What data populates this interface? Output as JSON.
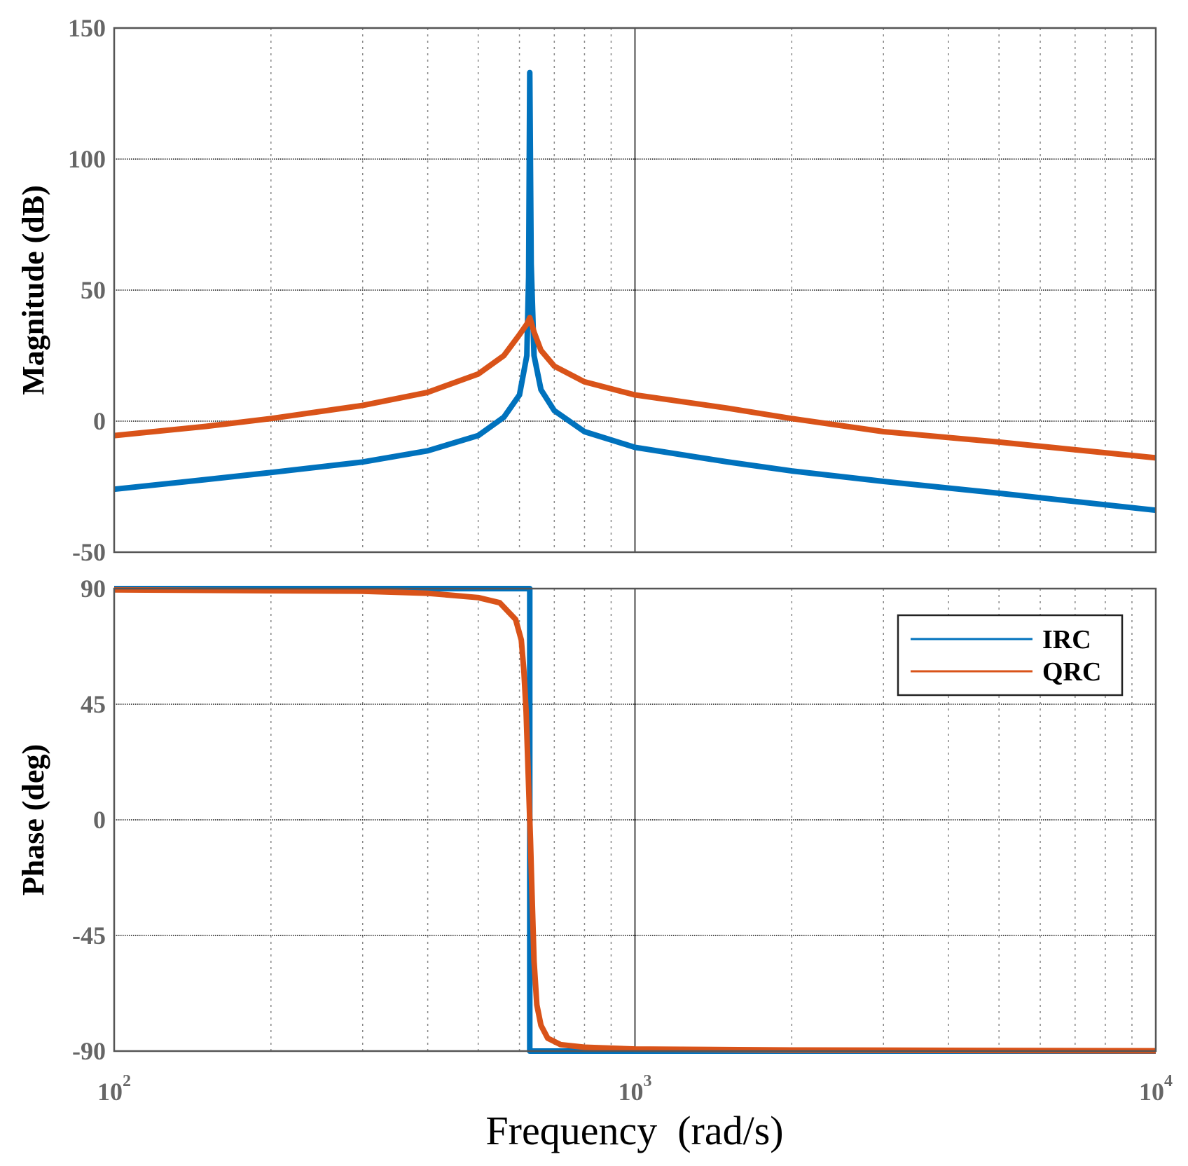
{
  "chart_data": [
    {
      "type": "line",
      "panel": "magnitude",
      "xscale": "log",
      "xlim": [
        100,
        10000
      ],
      "ylim": [
        -50,
        150
      ],
      "yticks": [
        "150",
        "100",
        "50",
        "0",
        "-50"
      ],
      "ylabel": "Magnitude (dB)",
      "grid": true,
      "series": [
        {
          "name": "IRC",
          "color": "#0072BD",
          "x": [
            100,
            150,
            200,
            300,
            400,
            500,
            560,
            600,
            620,
            625,
            628,
            632,
            640,
            660,
            700,
            800,
            1000,
            1500,
            2000,
            3000,
            5000,
            10000
          ],
          "y": [
            -26,
            -22.3,
            -19.6,
            -15.6,
            -11.3,
            -5.5,
            1.5,
            10,
            25,
            55,
            133,
            60,
            25,
            12,
            4,
            -4,
            -10,
            -15.5,
            -19,
            -23,
            -27.5,
            -34
          ]
        },
        {
          "name": "QRC",
          "color": "#D95319",
          "x": [
            100,
            150,
            200,
            300,
            400,
            500,
            560,
            600,
            620,
            628,
            640,
            660,
            700,
            800,
            1000,
            1500,
            2000,
            3000,
            5000,
            10000
          ],
          "y": [
            -5.5,
            -2,
            1,
            6,
            11,
            18,
            25,
            33,
            37,
            39.5,
            34,
            27,
            21,
            15,
            10,
            5,
            1,
            -4,
            -8,
            -14
          ]
        }
      ]
    },
    {
      "type": "line",
      "panel": "phase",
      "xscale": "log",
      "xlim": [
        100,
        10000
      ],
      "ylim": [
        -90,
        90
      ],
      "yticks": [
        "90",
        "45",
        "0",
        "-45",
        "-90"
      ],
      "xticks": [
        {
          "base": "10",
          "exp": "2"
        },
        {
          "base": "10",
          "exp": "3"
        },
        {
          "base": "10",
          "exp": "4"
        }
      ],
      "ylabel": "Phase (deg)",
      "xlabel": "Frequency  (rad/s)",
      "grid": true,
      "legend": {
        "placement": "top-right",
        "entries": [
          "IRC",
          "QRC"
        ]
      },
      "series": [
        {
          "name": "IRC",
          "color": "#0072BD",
          "x": [
            100,
            628,
            628,
            10000
          ],
          "y": [
            90,
            90,
            -90,
            -90
          ]
        },
        {
          "name": "QRC",
          "color": "#D95319",
          "x": [
            100,
            300,
            400,
            500,
            550,
            590,
            605,
            612,
            618,
            622,
            626,
            628,
            630,
            634,
            640,
            648,
            660,
            680,
            720,
            800,
            1000,
            2000,
            10000
          ],
          "y": [
            89.5,
            89,
            88.2,
            86.5,
            84.5,
            78,
            70,
            58,
            42,
            25,
            8,
            0,
            -8,
            -28,
            -55,
            -72,
            -80,
            -85,
            -87.5,
            -88.5,
            -89.2,
            -89.6,
            -89.9
          ]
        }
      ]
    }
  ]
}
